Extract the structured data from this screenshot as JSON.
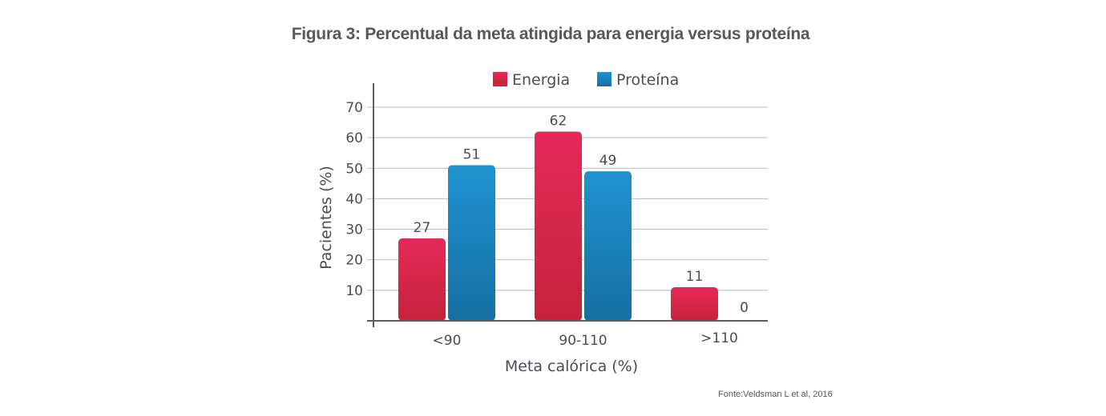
{
  "title": "Figura 3: Percentual da meta atingida para energia versus proteína",
  "source": "Fonte:Veldsman L et al, 2016",
  "chart_data": {
    "type": "bar",
    "title": "Figura 3: Percentual da meta atingida para energia versus proteína",
    "xlabel": "Meta calórica (%)",
    "ylabel": "Pacientes (%)",
    "categories": [
      "<90",
      "90-110",
      ">110"
    ],
    "series": [
      {
        "name": "Energia",
        "values": [
          27,
          62,
          11
        ],
        "color": "#e5295a",
        "color_dark": "#c6233a"
      },
      {
        "name": "Proteína",
        "values": [
          51,
          49,
          0
        ],
        "color": "#1f93d0",
        "color_dark": "#166fa3"
      }
    ],
    "yticks": [
      10,
      20,
      30,
      40,
      50,
      60,
      70
    ],
    "ylim": [
      0,
      70
    ],
    "grid": true,
    "legend": "top-center",
    "data_labels": true
  }
}
